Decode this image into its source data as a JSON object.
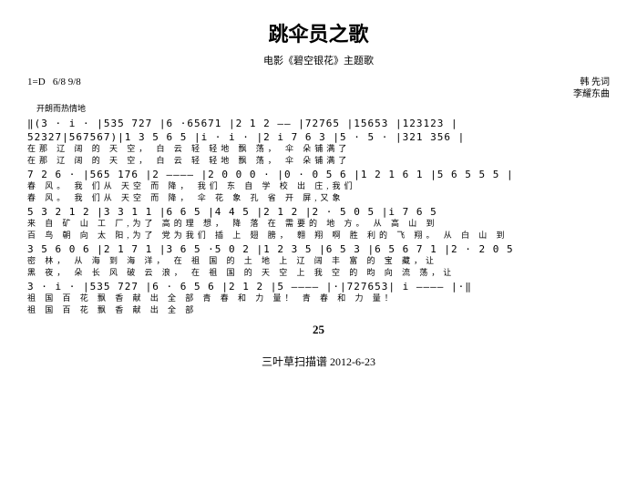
{
  "title": "跳伞员之歌",
  "subtitle": "电影《碧空银花》主题歌",
  "key_sig": "1=D",
  "time_sig": "6/8  9/8",
  "tempo_mark": "开朗而热情地",
  "lyricist": "韩 先词",
  "composer": "李耀东曲",
  "score": {
    "line1": "‖(3 · i ·  |535  727 |6 ·65671 |2 1 2 —— |72765 |15653 |123123 |",
    "line2": "52327|567567)|1 3  5 6 5  |i · i ·  |2 i  7 6 3  |5 · 5 ·  |321 356 |",
    "lyric2a": "在那     辽 阔 的    天  空，   白 云  轻  轻地     飘 荡，     伞 朵铺满了",
    "lyric2b": "在那     辽 阔 的    天  空，   白 云  轻  轻地     飘 荡，     伞 朵铺满了",
    "line3": "7 2 6 · |565 176 |2  ————  |2 0 0 0 · |0 · 0  5 6 |1 2  1 6 1 |5 6 5  5 5 |",
    "lyric3a": "春  风。      我 们从 天空 而       降，                    我们    东 自  学    校  出  庄,我们",
    "lyric3b": "春  风。      我 们从 天空 而       降，                              伞    花 象  孔    省  开    屏,又象",
    "line4": "5 3  2 1 2 |3 3  1 1 |6 6 5    |4 4 5    |2 1 2    |2 · 5 0 5  |i  7 6 5",
    "lyric4a": "来 自  矿 山    工 厂,为了      高的理    想，     降 落 在  需要的   地 方。 从    高    山 到",
    "lyric4b": "百 鸟  朝 向    太 阳,为了      党为我们    插 上 翅 膀，   翱 翔 啊  胜 利的   飞 翔。 从    白    山 到",
    "line5": "3 5  6 0 6 |2 1  7 1 |3 6 5 ·5 0 2 |1 2 3   5    |6 5 3    |6 5 6 7 1 |2 · 2 0 5",
    "lyric5a": "密    林，    从   海   到  海   洋， 在 祖     国 的   土   地 上    辽 阔  丰 富 的  宝   藏，让",
    "lyric5b": "黑    夜，    朵   长   风 破    云   浪， 在 祖     国 的   天   空 上    我  空 的  昀 向  流   荡，让",
    "line6": "3 · i ·  |535 727 |6 · 6 5 6  |2 1 2    |5   ————  |·|727653| i   ————  |·‖",
    "lyric6a": "祖   国      百 花 飘   香   献 出    全 部    青 春 和 力    量！           青 春 和 力    量！",
    "lyric6b": "祖   国      百 花 飘   香   献 出    全 部"
  },
  "page_number": "25",
  "footer": "三叶草扫描谱 2012-6-23"
}
